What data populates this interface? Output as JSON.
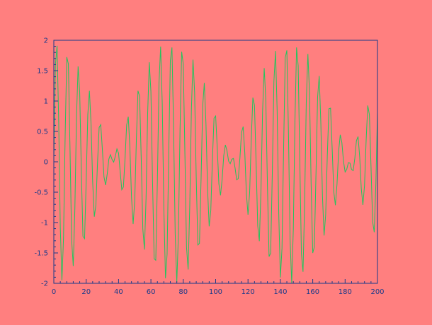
{
  "chart_data": {
    "type": "line",
    "title": "",
    "xlabel": "",
    "ylabel": "",
    "xlim": [
      0,
      200
    ],
    "ylim": [
      -2,
      2
    ],
    "x_ticks": [
      "0",
      "20",
      "40",
      "60",
      "80",
      "100",
      "120",
      "140",
      "160",
      "180",
      "200"
    ],
    "y_ticks": [
      "2",
      "1.5",
      "1",
      "0.5",
      "0",
      "-0.5",
      "-1",
      "-1.5",
      "-2"
    ],
    "series": [
      {
        "name": "",
        "signal": "2*cos(2*pi*x/146)*sin(0.93*x)",
        "x_start": 0,
        "x_end": 200,
        "x_step": 1
      }
    ],
    "grid": false,
    "legend": "none",
    "colors": {
      "background": "#FF7F7F",
      "axes": "#1a3a8a",
      "line": "#22C55E"
    }
  }
}
